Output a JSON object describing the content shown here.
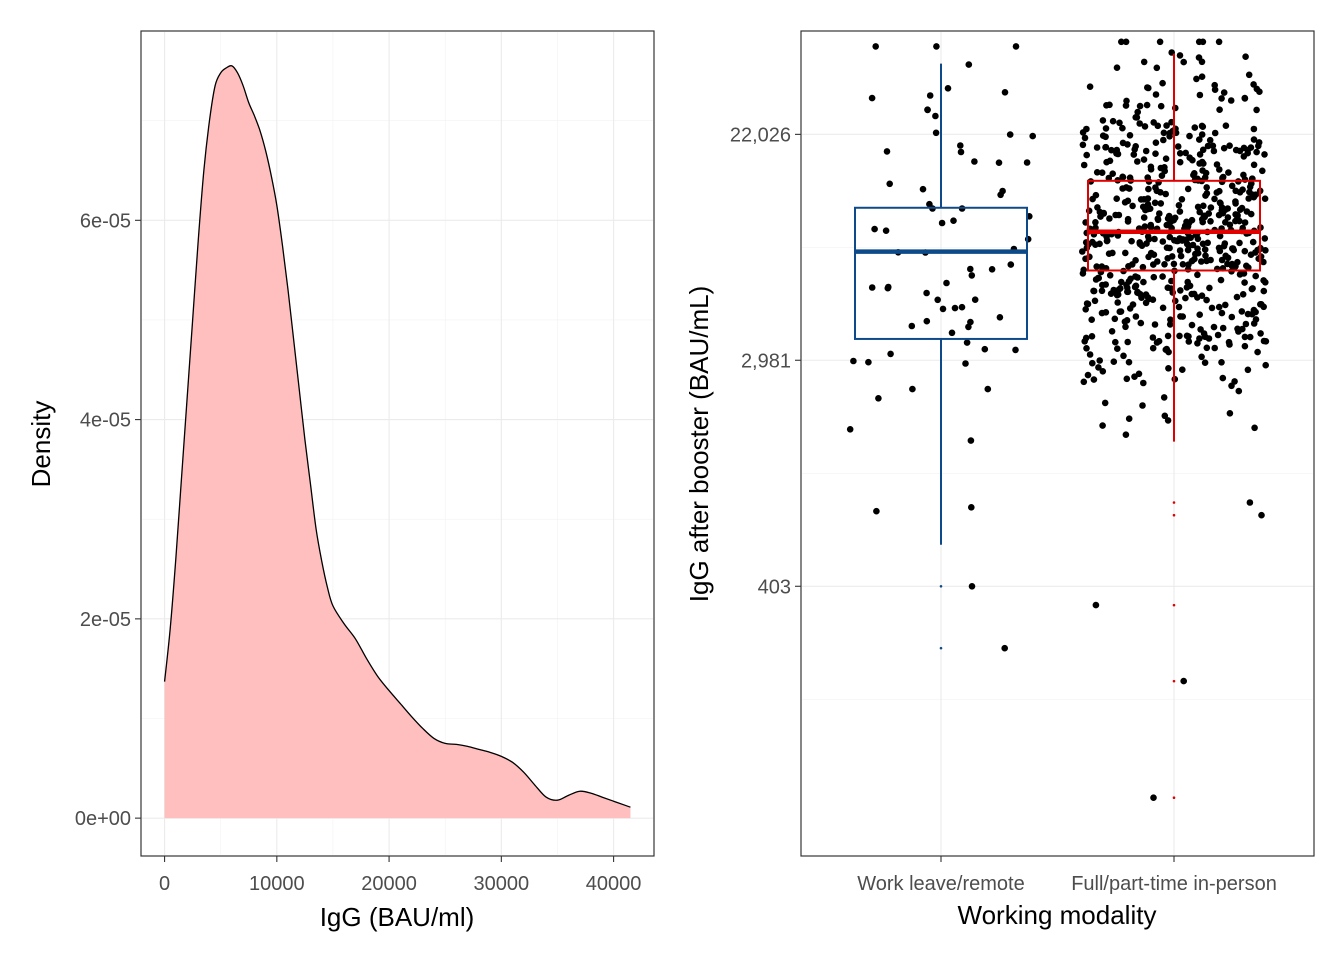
{
  "chart_data": [
    {
      "type": "area",
      "xlabel": "IgG (BAU/ml)",
      "ylabel": "Density",
      "xlim": [
        -2100,
        43600
      ],
      "ylim": [
        -3.8e-06,
        7.9e-05
      ],
      "xticks": [
        0,
        10000,
        20000,
        30000,
        40000
      ],
      "xtick_labels": [
        "0",
        "10000",
        "20000",
        "30000",
        "40000"
      ],
      "yticks": [
        0,
        2e-05,
        4e-05,
        6e-05
      ],
      "ytick_labels": [
        "0e+00",
        "2e-05",
        "4e-05",
        "6e-05"
      ],
      "grid": true,
      "fill_color": "#ffbfbf",
      "line_color": "#000000",
      "x": [
        0,
        500,
        1000,
        1500,
        2000,
        2500,
        3000,
        3500,
        4000,
        4500,
        5000,
        5500,
        6000,
        6500,
        7000,
        7500,
        8000,
        8500,
        9000,
        9500,
        10000,
        10500,
        11000,
        11500,
        12000,
        12500,
        13000,
        13500,
        14000,
        14500,
        15000,
        16000,
        17000,
        18000,
        19000,
        20000,
        21000,
        22000,
        23000,
        24000,
        25000,
        26000,
        27000,
        28000,
        29000,
        30000,
        31000,
        32000,
        33000,
        34000,
        35000,
        36000,
        37000,
        38000,
        39000,
        40000,
        41000,
        41500
      ],
      "y": [
        1.37e-05,
        1.9e-05,
        2.6e-05,
        3.4e-05,
        4.2e-05,
        5e-05,
        5.8e-05,
        6.5e-05,
        7e-05,
        7.35e-05,
        7.48e-05,
        7.53e-05,
        7.55e-05,
        7.48e-05,
        7.35e-05,
        7.18e-05,
        7.05e-05,
        6.9e-05,
        6.7e-05,
        6.45e-05,
        6.15e-05,
        5.75e-05,
        5.3e-05,
        4.8e-05,
        4.3e-05,
        3.8e-05,
        3.35e-05,
        2.9e-05,
        2.58e-05,
        2.32e-05,
        2.13e-05,
        1.95e-05,
        1.8e-05,
        1.6e-05,
        1.42e-05,
        1.28e-05,
        1.15e-05,
        1.02e-05,
        9e-06,
        8e-06,
        7.5e-06,
        7.4e-06,
        7.2e-06,
        6.9e-06,
        6.6e-06,
        6.2e-06,
        5.6e-06,
        4.6e-06,
        3.3e-06,
        2.1e-06,
        1.8e-06,
        2.3e-06,
        2.7e-06,
        2.5e-06,
        2.1e-06,
        1.7e-06,
        1.3e-06,
        1.1e-06
      ]
    },
    {
      "type": "scatter",
      "subtype": "boxplot_with_jitter",
      "xlabel": "Working modality",
      "ylabel": "IgG after booster (BAU/mL)",
      "y_scale": "log",
      "ylim": [
        37,
        55000
      ],
      "yticks": [
        403,
        2981,
        22026
      ],
      "ytick_labels": [
        "403",
        "2,981",
        "22,026"
      ],
      "categories": [
        "Work leave/remote",
        "Full/part-time in-person"
      ],
      "grid": true,
      "boxes": [
        {
          "category": "Work leave/remote",
          "color": "#0e4a8a",
          "q1": 3600,
          "median": 7800,
          "q3": 11500,
          "whisker_low": 582,
          "whisker_high": 41200,
          "outliers": [
            403,
            233
          ]
        },
        {
          "category": "Full/part-time in-person",
          "color": "#e00000",
          "q1": 6600,
          "median": 9300,
          "q3": 14600,
          "whisker_low": 1450,
          "whisker_high": 45000,
          "outliers": [
            846,
            756,
            341,
            174,
            62
          ]
        }
      ],
      "points_color": "#000000"
    }
  ]
}
